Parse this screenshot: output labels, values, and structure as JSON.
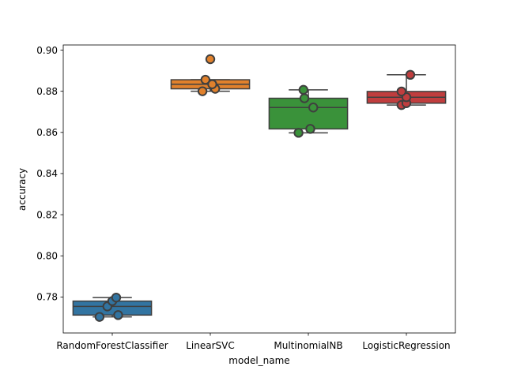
{
  "chart_data": {
    "type": "box",
    "title": "",
    "xlabel": "model_name",
    "ylabel": "accuracy",
    "ylim": [
      0.7625,
      0.9025
    ],
    "yticks": [
      0.78,
      0.8,
      0.82,
      0.84,
      0.86,
      0.88,
      0.9
    ],
    "ytick_labels": [
      "0.78",
      "0.80",
      "0.82",
      "0.84",
      "0.86",
      "0.88",
      "0.90"
    ],
    "grid": false,
    "legend": "none",
    "categories": [
      "RandomForestClassifier",
      "LinearSVC",
      "MultinomialNB",
      "LogisticRegression"
    ],
    "colors": [
      "#3274a1",
      "#e1812c",
      "#3a923a",
      "#c03d3e"
    ],
    "boxes": [
      {
        "whisker_low": 0.7703,
        "q1": 0.7712,
        "median": 0.7754,
        "q3": 0.778,
        "whisker_high": 0.7797
      },
      {
        "whisker_low": 0.88,
        "q1": 0.8812,
        "median": 0.8834,
        "q3": 0.8856,
        "whisker_high": 0.8856,
        "outliers": [
          0.8956
        ]
      },
      {
        "whisker_low": 0.8598,
        "q1": 0.8617,
        "median": 0.8721,
        "q3": 0.8766,
        "whisker_high": 0.8807
      },
      {
        "whisker_low": 0.8733,
        "q1": 0.8742,
        "median": 0.8771,
        "q3": 0.8799,
        "whisker_high": 0.888
      }
    ],
    "points": [
      {
        "offsets": [
          -0.13,
          0.06,
          -0.05,
          0.0,
          0.04
        ],
        "values": [
          0.7703,
          0.7712,
          0.7754,
          0.778,
          0.7797
        ]
      },
      {
        "offsets": [
          -0.08,
          0.05,
          0.02,
          -0.05,
          0.0
        ],
        "values": [
          0.88,
          0.8812,
          0.8834,
          0.8856,
          0.8956
        ]
      },
      {
        "offsets": [
          -0.1,
          0.02,
          0.05,
          -0.04,
          -0.05
        ],
        "values": [
          0.8598,
          0.8617,
          0.8721,
          0.8766,
          0.8807
        ]
      },
      {
        "offsets": [
          -0.05,
          0.0,
          0.0,
          -0.05,
          0.04
        ],
        "values": [
          0.8733,
          0.8742,
          0.8771,
          0.8799,
          0.888
        ]
      }
    ]
  }
}
